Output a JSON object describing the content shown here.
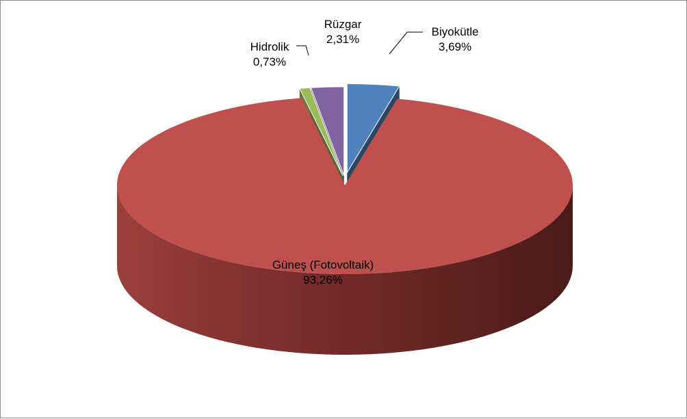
{
  "chart_data": {
    "type": "pie",
    "slices": [
      {
        "name": "Güneş (Fotovoltaik)",
        "value": 93.26,
        "label": "93,26%",
        "color": "#C0504D"
      },
      {
        "name": "Hidrolik",
        "value": 0.73,
        "label": "0,73%",
        "color": "#9BBB59"
      },
      {
        "name": "Rüzgar",
        "value": 2.31,
        "label": "2,31%",
        "color": "#8064A2"
      },
      {
        "name": "Biyokütle",
        "value": 3.69,
        "label": "3,69%",
        "color": "#4F81BD"
      }
    ],
    "style": "3d-exploded"
  }
}
